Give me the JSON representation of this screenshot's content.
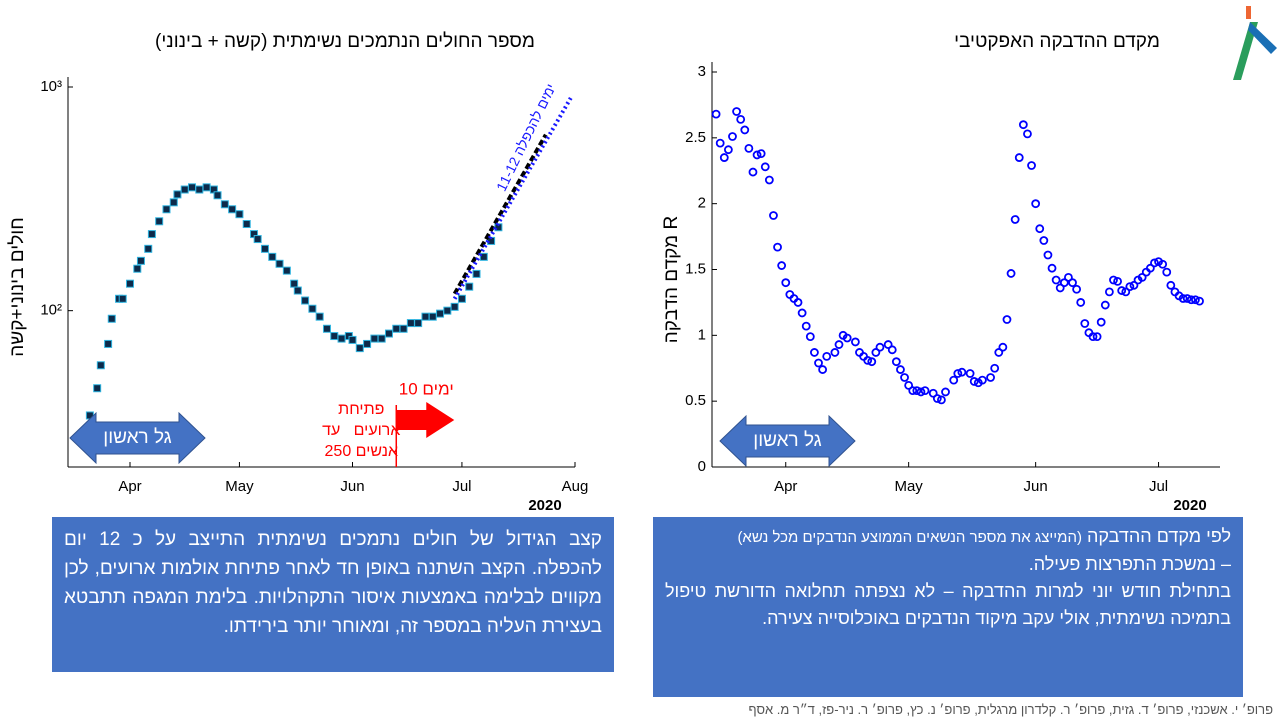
{
  "chart_data": [
    {
      "type": "scatter",
      "title": "מספר החולים הנתמכים נשימתית (קשה + בינוני)",
      "ylabel": "חולים בינוני+קשה",
      "xlabel": "2020",
      "ylog": true,
      "ylim": [
        20,
        1000
      ],
      "yticks": [
        {
          "value": 100,
          "label": "10²"
        },
        {
          "value": 1000,
          "label": "10³"
        }
      ],
      "xlim": [
        75,
        214
      ],
      "xticks": [
        {
          "value": 92,
          "label": "Apr"
        },
        {
          "value": 122,
          "label": "May"
        },
        {
          "value": 153,
          "label": "Jun"
        },
        {
          "value": 183,
          "label": "Jul"
        },
        {
          "value": 214,
          "label": "Aug"
        }
      ],
      "series": [
        {
          "marker": "square",
          "color": "#0d2a4a",
          "edge_color": "#2fb4e0",
          "x": [
            81,
            83,
            84,
            86,
            87,
            89,
            90,
            92,
            94,
            95,
            97,
            98,
            100,
            102,
            104,
            105,
            107,
            109,
            111,
            113,
            115,
            116,
            118,
            120,
            122,
            124,
            126,
            127,
            129,
            131,
            133,
            135,
            137,
            138,
            140,
            142,
            144,
            146,
            148,
            150,
            152,
            153,
            155,
            157,
            159,
            161,
            163,
            165,
            167,
            169,
            171,
            173,
            175,
            177,
            179,
            181,
            183,
            185,
            187,
            189,
            191,
            193
          ],
          "values": [
            34,
            45,
            57,
            71,
            92,
            113,
            113,
            132,
            154,
            167,
            189,
            220,
            251,
            284,
            305,
            331,
            348,
            356,
            348,
            356,
            348,
            328,
            299,
            284,
            270,
            244,
            220,
            209,
            189,
            174,
            162,
            151,
            132,
            123,
            111,
            102,
            94,
            83,
            77,
            75,
            77,
            74,
            68,
            71,
            75,
            75,
            79,
            83,
            83,
            88,
            88,
            94,
            94,
            97,
            100,
            104,
            113,
            128,
            146,
            174,
            205,
            236
          ]
        },
        {
          "marker": null,
          "style": "dashed",
          "color": "#000000",
          "x": [
            181,
            206
          ],
          "values": [
            119,
            612
          ]
        },
        {
          "marker": null,
          "style": "dotted",
          "color": "#1a1aff",
          "x": [
            181,
            213
          ],
          "values": [
            113,
            903
          ]
        }
      ],
      "vline_x": 165,
      "vline_color": "#ff0000",
      "fit_annotation": "11-12 ימים להכפלה",
      "arrow_label": "10 ימים",
      "event_lines": [
        "פתיחת",
        "ארועים   עד",
        "250 אנשים"
      ],
      "wave_label": "גל ראשון"
    },
    {
      "type": "scatter",
      "title": "מקדם ההדבקה האפקטיבי",
      "ylabel": "מקדם הדבקה R",
      "xlabel": "2020",
      "ylim": [
        0,
        3
      ],
      "yticks": [
        0,
        0.5,
        1,
        1.5,
        2,
        2.5,
        3
      ],
      "xlim": [
        74,
        198
      ],
      "xticks": [
        {
          "value": 92,
          "label": "Apr"
        },
        {
          "value": 122,
          "label": "May"
        },
        {
          "value": 153,
          "label": "Jun"
        },
        {
          "value": 183,
          "label": "Jul"
        }
      ],
      "series": [
        {
          "marker": "circle",
          "color": "#0000ff",
          "x": [
            75,
            76,
            77,
            78,
            79,
            80,
            81,
            82,
            83,
            84,
            85,
            86,
            87,
            88,
            89,
            90,
            91,
            92,
            93,
            94,
            95,
            96,
            97,
            98,
            99,
            100,
            101,
            102,
            104,
            105,
            106,
            107,
            109,
            110,
            111,
            112,
            113,
            114,
            115,
            117,
            118,
            119,
            120,
            121,
            122,
            123,
            124,
            125,
            126,
            128,
            129,
            130,
            131,
            133,
            134,
            135,
            137,
            138,
            139,
            140,
            142,
            143,
            144,
            145,
            146,
            147,
            148,
            149,
            150,
            151,
            152,
            153,
            154,
            155,
            156,
            157,
            158,
            159,
            160,
            161,
            162,
            163,
            164,
            165,
            166,
            167,
            168,
            169,
            170,
            171,
            172,
            173,
            174,
            175,
            176,
            177,
            178,
            179,
            180,
            181,
            182,
            183,
            184,
            185,
            186,
            187,
            188,
            189,
            190,
            191,
            192,
            193
          ],
          "values": [
            2.68,
            2.46,
            2.35,
            2.41,
            2.51,
            2.7,
            2.64,
            2.56,
            2.42,
            2.24,
            2.37,
            2.38,
            2.28,
            2.18,
            1.91,
            1.67,
            1.53,
            1.4,
            1.31,
            1.28,
            1.25,
            1.17,
            1.07,
            0.99,
            0.87,
            0.79,
            0.74,
            0.84,
            0.87,
            0.93,
            1.0,
            0.98,
            0.95,
            0.87,
            0.84,
            0.81,
            0.8,
            0.87,
            0.91,
            0.93,
            0.89,
            0.8,
            0.74,
            0.68,
            0.62,
            0.58,
            0.58,
            0.57,
            0.58,
            0.56,
            0.52,
            0.51,
            0.57,
            0.66,
            0.71,
            0.72,
            0.71,
            0.65,
            0.64,
            0.66,
            0.68,
            0.75,
            0.87,
            0.91,
            1.12,
            1.47,
            1.88,
            2.35,
            2.6,
            2.53,
            2.29,
            2.0,
            1.81,
            1.72,
            1.61,
            1.51,
            1.42,
            1.36,
            1.4,
            1.44,
            1.4,
            1.35,
            1.25,
            1.09,
            1.02,
            0.99,
            0.99,
            1.1,
            1.23,
            1.33,
            1.42,
            1.41,
            1.34,
            1.33,
            1.37,
            1.38,
            1.42,
            1.44,
            1.48,
            1.51,
            1.55,
            1.56,
            1.54,
            1.48,
            1.38,
            1.33,
            1.3,
            1.28,
            1.28,
            1.27,
            1.27,
            1.26
          ]
        }
      ],
      "wave_label": "גל ראשון"
    }
  ],
  "text_boxes": [
    {
      "paragraphs": [
        "קצב הגידול של חולים נתמכים נשימתית התייצב על כ 12 יום להכפלה. הקצב השתנה באופן חד לאחר פתיחת אולמות ארועים, לכן מקווים לבלימה באמצעות איסור התקהלויות. בלימת המגפה תתבטא בעצירת העליה במספר זה, ומאוחר יותר בירידתו."
      ]
    },
    {
      "lead": "לפי מקדם ההדבקה",
      "note": "(המייצג את מספר הנשאים הממוצע הנדבקים מכל נשא)",
      "paragraphs": [
        "– נמשכת התפרצות פעילה.",
        "בתחילת חודש יוני למרות ההדבקה – לא נצפתה תחלואה הדורשת טיפול בתמיכה נשימתית, אולי עקב מיקוד הנדבקים באוכלוסייה צעירה."
      ]
    }
  ],
  "footer": "פרופ׳ י. אשכנזי, פרופ׳ ד. גזית, פרופ׳ ר. קלדרון מרגלית, פרופ׳ נ. כץ, פרופ׳ ר. ניר-פז, ד״ר מ. אסף"
}
